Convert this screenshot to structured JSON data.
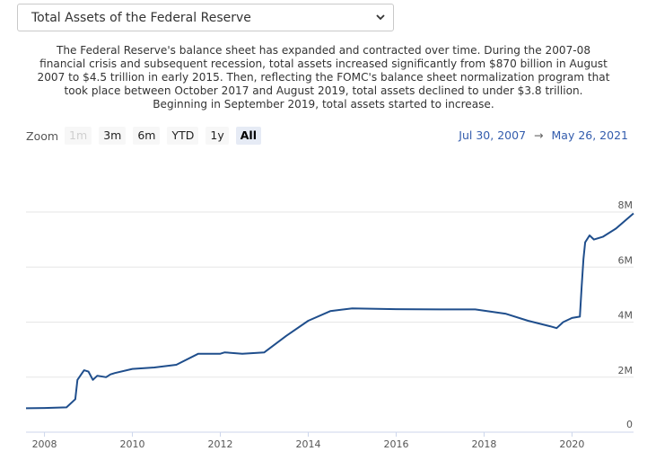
{
  "selector": {
    "value": "Total Assets of the Federal Reserve"
  },
  "description": "The Federal Reserve's balance sheet has expanded and contracted over time. During the 2007-08 financial crisis and subsequent recession, total assets increased significantly from $870 billion in August 2007 to $4.5 trillion in early 2015. Then, reflecting the FOMC's balance sheet normalization program that took place between October 2017 and August 2019, total assets declined to under $3.8 trillion. Beginning in September 2019, total assets started to increase.",
  "zoom": {
    "label": "Zoom",
    "buttons": [
      {
        "label": "1m",
        "state": "disabled"
      },
      {
        "label": "3m",
        "state": "normal"
      },
      {
        "label": "6m",
        "state": "normal"
      },
      {
        "label": "YTD",
        "state": "normal"
      },
      {
        "label": "1y",
        "state": "normal"
      },
      {
        "label": "All",
        "state": "active"
      }
    ]
  },
  "range": {
    "from": "Jul 30, 2007",
    "arrow": "→",
    "to": "May 26, 2021"
  },
  "colors": {
    "line": "#1f4e8c",
    "grid": "#e6e6e6",
    "range_text": "#335cad"
  },
  "chart_data": {
    "type": "line",
    "title": "",
    "xlabel": "",
    "ylabel": "",
    "xlim": [
      2007.58,
      2021.4
    ],
    "ylim": [
      0,
      8000000
    ],
    "x_ticks": [
      "2008",
      "2010",
      "2012",
      "2014",
      "2016",
      "2018",
      "2020"
    ],
    "y_ticks": [
      "0",
      "2M",
      "4M",
      "6M",
      "8M"
    ],
    "grid": true,
    "legend": "none",
    "series": [
      {
        "name": "",
        "x": [
          2007.58,
          2008.0,
          2008.5,
          2008.7,
          2008.75,
          2008.9,
          2009.0,
          2009.1,
          2009.2,
          2009.4,
          2009.5,
          2009.6,
          2010.0,
          2010.5,
          2011.0,
          2011.5,
          2012.0,
          2012.1,
          2012.5,
          2013.0,
          2013.5,
          2014.0,
          2014.5,
          2015.0,
          2016.0,
          2017.0,
          2017.8,
          2018.5,
          2019.0,
          2019.5,
          2019.65,
          2019.8,
          2020.0,
          2020.18,
          2020.22,
          2020.26,
          2020.3,
          2020.4,
          2020.5,
          2020.7,
          2021.0,
          2021.4
        ],
        "values": [
          870000,
          880000,
          900000,
          1200000,
          1900000,
          2250000,
          2200000,
          1900000,
          2050000,
          2000000,
          2100000,
          2150000,
          2300000,
          2350000,
          2450000,
          2850000,
          2850000,
          2900000,
          2850000,
          2900000,
          3500000,
          4050000,
          4400000,
          4500000,
          4470000,
          4460000,
          4460000,
          4300000,
          4050000,
          3850000,
          3780000,
          4000000,
          4150000,
          4200000,
          5300000,
          6300000,
          6900000,
          7150000,
          7000000,
          7100000,
          7400000,
          7950000
        ]
      }
    ]
  }
}
